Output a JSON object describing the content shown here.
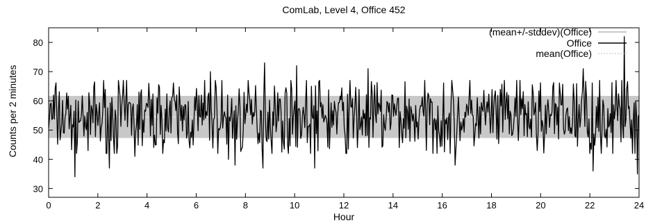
{
  "chart_data": {
    "type": "line",
    "title": "ComLab, Level 4, Office 452",
    "xlabel": "Hour",
    "ylabel": "Counts per 2 minutes",
    "xlim": [
      0,
      24
    ],
    "ylim": [
      27,
      85
    ],
    "xticks": [
      0,
      2,
      4,
      6,
      8,
      10,
      12,
      14,
      16,
      18,
      20,
      22,
      24
    ],
    "yticks": [
      30,
      40,
      50,
      60,
      70,
      80
    ],
    "grid": false,
    "legend_position": "top-right",
    "legend": [
      {
        "label": "(mean+/-stddev)(Office)",
        "color": "#c8c8c8"
      },
      {
        "label": "Office",
        "color": "#000000"
      },
      {
        "label": "mean(Office)",
        "color": "#ffffff"
      }
    ],
    "series": [
      {
        "name": "Office",
        "sampling": "every 2 minutes (720 points)",
        "mean": 54.5,
        "stddev": 7.2,
        "min": 34,
        "max": 82
      }
    ],
    "highlights": [
      {
        "x": 1.05,
        "y": 34
      },
      {
        "x": 1.6,
        "y": 43
      },
      {
        "x": 2.45,
        "y": 37
      },
      {
        "x": 3.5,
        "y": 41
      },
      {
        "x": 6.55,
        "y": 70
      },
      {
        "x": 7.3,
        "y": 40
      },
      {
        "x": 7.55,
        "y": 38
      },
      {
        "x": 8.75,
        "y": 73
      },
      {
        "x": 8.7,
        "y": 37
      },
      {
        "x": 10.05,
        "y": 72
      },
      {
        "x": 10.8,
        "y": 37
      },
      {
        "x": 12.95,
        "y": 71
      },
      {
        "x": 12.05,
        "y": 42
      },
      {
        "x": 16.5,
        "y": 38
      },
      {
        "x": 21.7,
        "y": 71
      },
      {
        "x": 22.1,
        "y": 36
      },
      {
        "x": 23.35,
        "y": 82
      },
      {
        "x": 23.9,
        "y": 35
      }
    ]
  }
}
